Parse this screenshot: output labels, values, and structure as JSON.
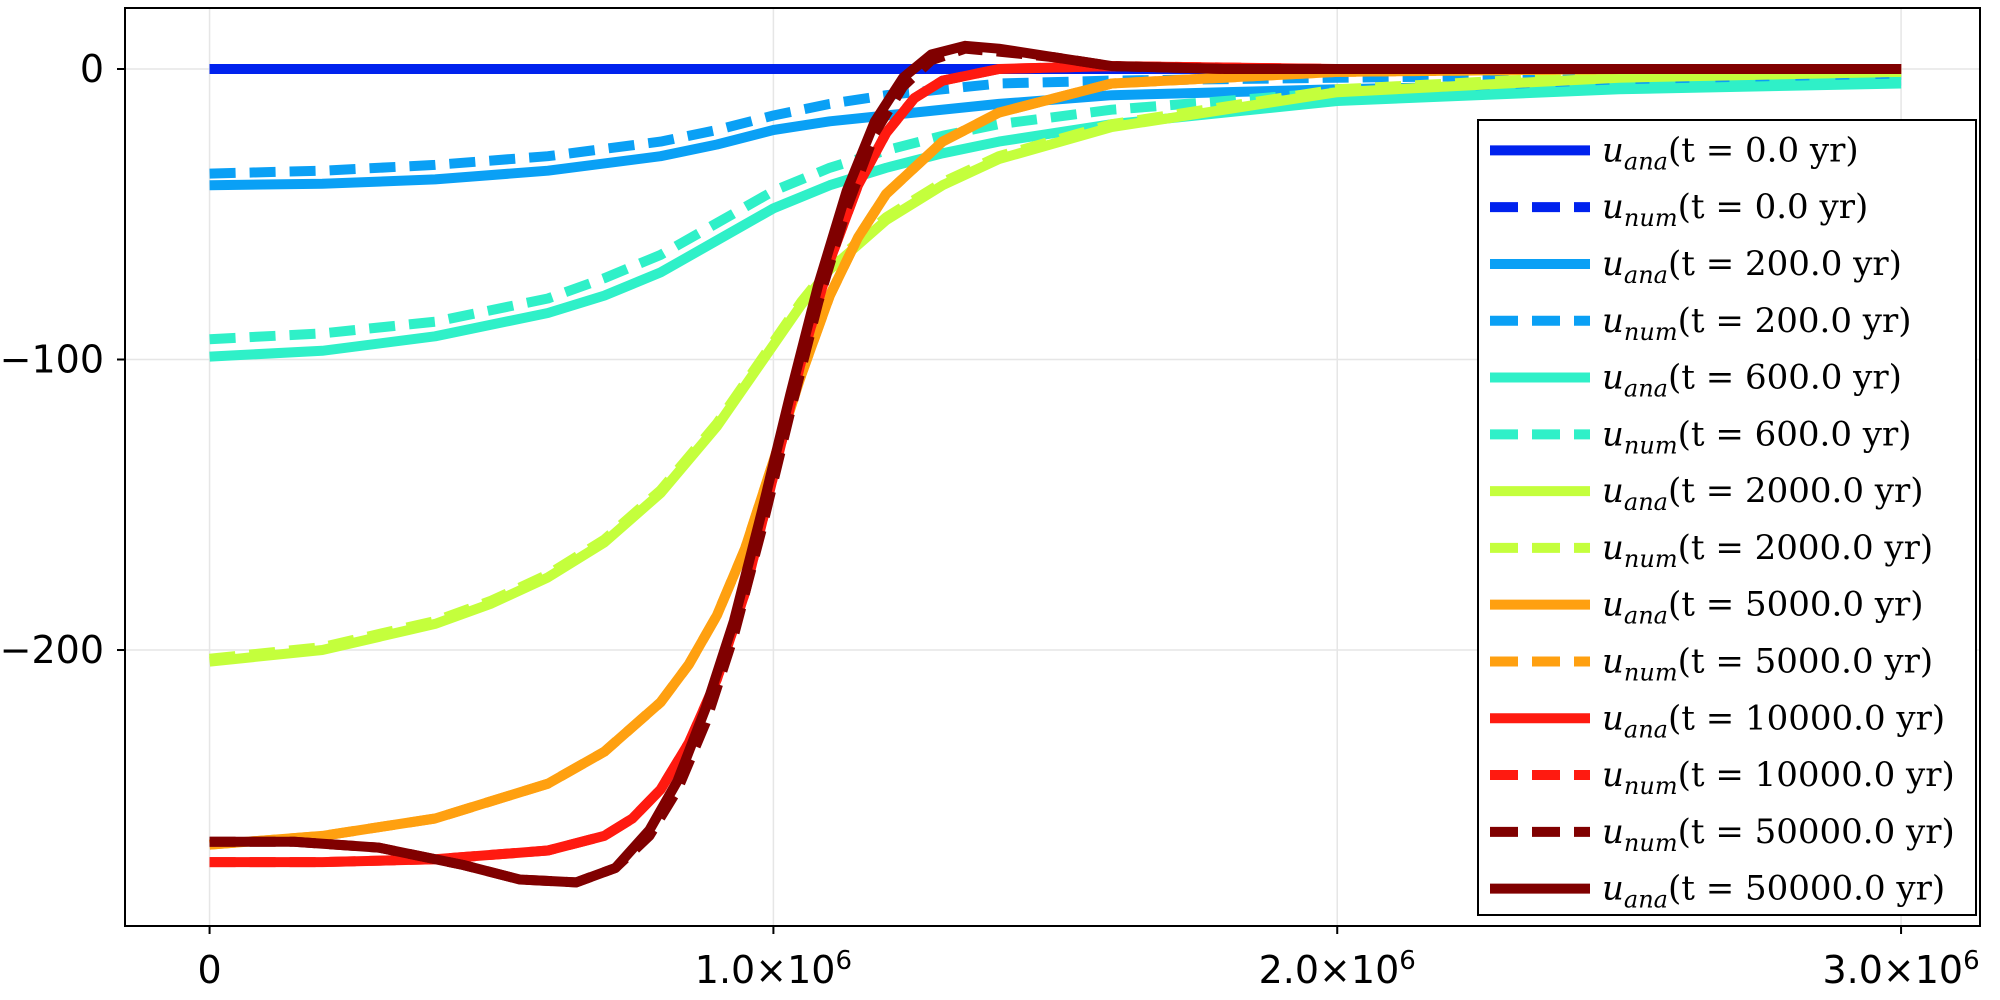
{
  "chart_data": {
    "type": "line",
    "title": "",
    "xlabel": "",
    "ylabel": "",
    "xlim": [
      -150000,
      3140000
    ],
    "ylim": [
      -295,
      21
    ],
    "grid": true,
    "legend_position": "right",
    "x_ticks": [
      {
        "value": 0,
        "label": "0"
      },
      {
        "value": 1000000,
        "label": "1.0×10",
        "exp": "6"
      },
      {
        "value": 2000000,
        "label": "2.0×10",
        "exp": "6"
      },
      {
        "value": 3000000,
        "label": "3.0×10",
        "exp": "6"
      }
    ],
    "y_ticks": [
      {
        "value": 0,
        "label": "0"
      },
      {
        "value": -100,
        "label": "−100"
      },
      {
        "value": -200,
        "label": "−200"
      }
    ],
    "series": [
      {
        "name_var": "u",
        "name_sub": "ana",
        "name_t": "t = 0.0 yr",
        "t_value": "0.0",
        "style": "solid",
        "color": "#0022ee",
        "x": [
          0,
          500000,
          1000000,
          1500000,
          2000000,
          2500000,
          3000000
        ],
        "y": [
          0,
          0,
          0,
          0,
          0,
          0,
          0
        ]
      },
      {
        "name_var": "u",
        "name_sub": "num",
        "name_t": "t = 0.0 yr",
        "t_value": "0.0",
        "style": "dashed",
        "color": "#0022ee",
        "x": [
          0,
          500000,
          1000000,
          1500000,
          2000000,
          2500000,
          3000000
        ],
        "y": [
          0,
          0,
          0,
          0,
          0,
          0,
          0
        ]
      },
      {
        "name_var": "u",
        "name_sub": "ana",
        "name_t": "t = 200.0 yr",
        "t_value": "200.0",
        "style": "solid",
        "color": "#0aa0f5",
        "x": [
          0,
          200000,
          400000,
          600000,
          800000,
          900000,
          1000000,
          1100000,
          1200000,
          1400000,
          1600000,
          2000000,
          2500000,
          3000000
        ],
        "y": [
          -40,
          -39.5,
          -38,
          -35,
          -30,
          -26,
          -21,
          -18,
          -16,
          -12,
          -9,
          -7,
          -5,
          -4
        ]
      },
      {
        "name_var": "u",
        "name_sub": "num",
        "name_t": "t = 200.0 yr",
        "t_value": "200.0",
        "style": "dashed",
        "color": "#0aa0f5",
        "x": [
          0,
          200000,
          400000,
          600000,
          800000,
          900000,
          1000000,
          1100000,
          1200000,
          1300000,
          1400000,
          1600000,
          2000000,
          2500000,
          3000000
        ],
        "y": [
          -36,
          -35,
          -33,
          -30,
          -25,
          -21,
          -16,
          -12,
          -9,
          -7,
          -5,
          -4,
          -3,
          -2,
          -2
        ]
      },
      {
        "name_var": "u",
        "name_sub": "ana",
        "name_t": "t = 600.0 yr",
        "t_value": "600.0",
        "style": "solid",
        "color": "#2ff0c8",
        "x": [
          0,
          200000,
          400000,
          600000,
          700000,
          800000,
          900000,
          1000000,
          1100000,
          1200000,
          1300000,
          1400000,
          1600000,
          2000000,
          2500000,
          3000000
        ],
        "y": [
          -99,
          -97,
          -92,
          -84,
          -78,
          -70,
          -59,
          -48,
          -40,
          -34,
          -29,
          -25,
          -19,
          -11,
          -7,
          -5
        ]
      },
      {
        "name_var": "u",
        "name_sub": "num",
        "name_t": "t = 600.0 yr",
        "t_value": "600.0",
        "style": "dashed",
        "color": "#2ff0c8",
        "x": [
          0,
          200000,
          400000,
          600000,
          700000,
          800000,
          900000,
          1000000,
          1100000,
          1200000,
          1300000,
          1400000,
          1600000,
          2000000,
          2500000,
          3000000
        ],
        "y": [
          -93,
          -91,
          -87,
          -79,
          -72,
          -64,
          -53,
          -42,
          -34,
          -28,
          -23,
          -19,
          -14,
          -8,
          -4,
          -2
        ]
      },
      {
        "name_var": "u",
        "name_sub": "ana",
        "name_t": "t = 2000.0 yr",
        "t_value": "2000.0",
        "style": "solid",
        "color": "#c4ff3c",
        "x": [
          0,
          200000,
          400000,
          500000,
          600000,
          700000,
          800000,
          900000,
          950000,
          1000000,
          1050000,
          1100000,
          1200000,
          1300000,
          1400000,
          1600000,
          2000000,
          2500000,
          3000000
        ],
        "y": [
          -204,
          -200,
          -191,
          -184,
          -175,
          -163,
          -146,
          -123,
          -109,
          -95,
          -81,
          -69,
          -52,
          -40,
          -31,
          -20,
          -8,
          -3,
          -1
        ]
      },
      {
        "name_var": "u",
        "name_sub": "num",
        "name_t": "t = 2000.0 yr",
        "t_value": "2000.0",
        "style": "dashed",
        "color": "#c4ff3c",
        "x": [
          0,
          200000,
          400000,
          500000,
          600000,
          700000,
          800000,
          900000,
          950000,
          1000000,
          1050000,
          1100000,
          1200000,
          1300000,
          1400000,
          1600000,
          2000000,
          2500000,
          3000000
        ],
        "y": [
          -203,
          -199,
          -190,
          -183,
          -174,
          -162,
          -145,
          -122,
          -108,
          -94,
          -80,
          -68,
          -51,
          -39,
          -30,
          -19,
          -7,
          -2,
          -1
        ]
      },
      {
        "name_var": "u",
        "name_sub": "ana",
        "name_t": "t = 5000.0 yr",
        "t_value": "5000.0",
        "style": "solid",
        "color": "#ffa010",
        "x": [
          0,
          200000,
          400000,
          600000,
          700000,
          800000,
          850000,
          900000,
          950000,
          1000000,
          1050000,
          1100000,
          1150000,
          1200000,
          1300000,
          1400000,
          1600000,
          2000000,
          2500000,
          3000000
        ],
        "y": [
          -267,
          -264,
          -258,
          -246,
          -235,
          -218,
          -205,
          -188,
          -165,
          -135,
          -105,
          -78,
          -58,
          -43,
          -25,
          -15,
          -5,
          -1,
          0,
          0
        ]
      },
      {
        "name_var": "u",
        "name_sub": "num",
        "name_t": "t = 5000.0 yr",
        "t_value": "5000.0",
        "style": "dashed",
        "color": "#ffa010",
        "x": [
          0,
          200000,
          400000,
          600000,
          700000,
          800000,
          850000,
          900000,
          950000,
          1000000,
          1050000,
          1100000,
          1150000,
          1200000,
          1300000,
          1400000,
          1600000,
          2000000,
          2500000,
          3000000
        ],
        "y": [
          -267,
          -264,
          -258,
          -246,
          -235,
          -218,
          -205,
          -188,
          -165,
          -135,
          -105,
          -78,
          -58,
          -43,
          -25,
          -15,
          -5,
          -1,
          0,
          0
        ]
      },
      {
        "name_var": "u",
        "name_sub": "ana",
        "name_t": "t = 10000.0 yr",
        "t_value": "10000.0",
        "style": "solid",
        "color": "#ff1a10",
        "x": [
          0,
          200000,
          400000,
          600000,
          700000,
          750000,
          800000,
          850000,
          900000,
          950000,
          1000000,
          1050000,
          1100000,
          1150000,
          1200000,
          1250000,
          1300000,
          1400000,
          1600000,
          2000000,
          3000000
        ],
        "y": [
          -273,
          -273,
          -272,
          -269,
          -264,
          -258,
          -248,
          -232,
          -210,
          -180,
          -140,
          -100,
          -66,
          -40,
          -22,
          -10,
          -4,
          0,
          1,
          0,
          0
        ]
      },
      {
        "name_var": "u",
        "name_sub": "num",
        "name_t": "t = 10000.0 yr",
        "t_value": "10000.0",
        "style": "dashed",
        "color": "#ff1a10",
        "x": [
          0,
          200000,
          400000,
          600000,
          700000,
          750000,
          800000,
          850000,
          900000,
          950000,
          1000000,
          1050000,
          1100000,
          1150000,
          1200000,
          1250000,
          1300000,
          1400000,
          1600000,
          2000000,
          3000000
        ],
        "y": [
          -273,
          -273,
          -272,
          -269,
          -264,
          -258,
          -248,
          -232,
          -210,
          -180,
          -140,
          -100,
          -66,
          -40,
          -22,
          -10,
          -4,
          0,
          1,
          0,
          0
        ]
      },
      {
        "name_var": "u",
        "name_sub": "num",
        "name_t": "t = 50000.0 yr",
        "t_value": "50000.0",
        "style": "dashed",
        "color": "#800000",
        "x": [
          0,
          150000,
          300000,
          450000,
          550000,
          650000,
          720000,
          780000,
          830000,
          880000,
          930000,
          980000,
          1030000,
          1080000,
          1130000,
          1180000,
          1230000,
          1280000,
          1340000,
          1400000,
          1500000,
          1600000,
          1800000,
          2000000,
          3000000
        ],
        "y": [
          -266,
          -266,
          -268,
          -274,
          -279,
          -280,
          -275,
          -264,
          -248,
          -225,
          -195,
          -158,
          -118,
          -80,
          -48,
          -22,
          -6,
          3,
          7,
          6,
          4,
          1,
          0,
          0,
          0
        ]
      },
      {
        "name_var": "u",
        "name_sub": "ana",
        "name_t": "t = 50000.0 yr",
        "t_value": "50000.0",
        "style": "solid",
        "color": "#800000",
        "x": [
          0,
          150000,
          300000,
          450000,
          550000,
          650000,
          720000,
          780000,
          830000,
          880000,
          930000,
          980000,
          1030000,
          1080000,
          1130000,
          1180000,
          1230000,
          1280000,
          1340000,
          1400000,
          1500000,
          1600000,
          1800000,
          2000000,
          3000000
        ],
        "y": [
          -266,
          -266,
          -268,
          -274,
          -279,
          -280,
          -275,
          -262,
          -245,
          -220,
          -190,
          -152,
          -112,
          -74,
          -42,
          -18,
          -3,
          5,
          8,
          7,
          4,
          1,
          0,
          0,
          0
        ]
      }
    ]
  }
}
